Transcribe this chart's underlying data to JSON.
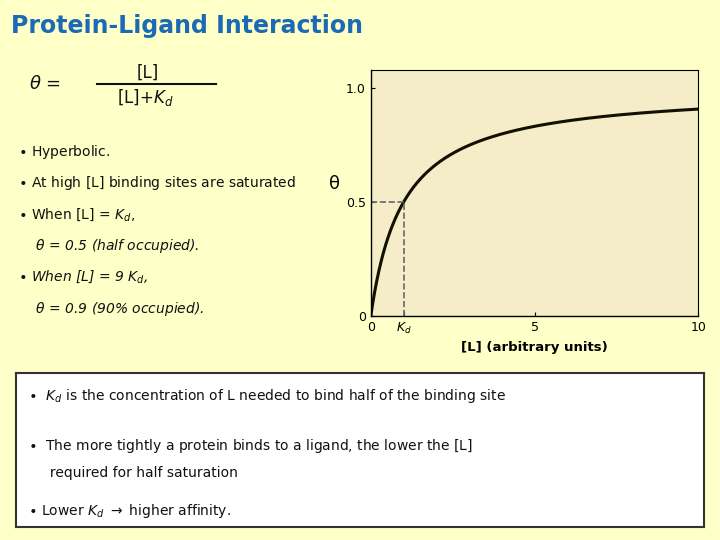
{
  "title": "Protein-Ligand Interaction",
  "title_color": "#1a6ab5",
  "bg_color": "#ffffc8",
  "plot_bg_color": "#f5ecc8",
  "fig_width": 7.2,
  "fig_height": 5.4,
  "dpi": 100,
  "Kd": 1,
  "x_max": 10,
  "bottom_box_color": "#ffffff",
  "bottom_box_edge": "#333333",
  "curve_color": "#111100",
  "dashed_color": "#666666",
  "xlabel": "[L] (arbitrary units)",
  "ylabel": "θ"
}
